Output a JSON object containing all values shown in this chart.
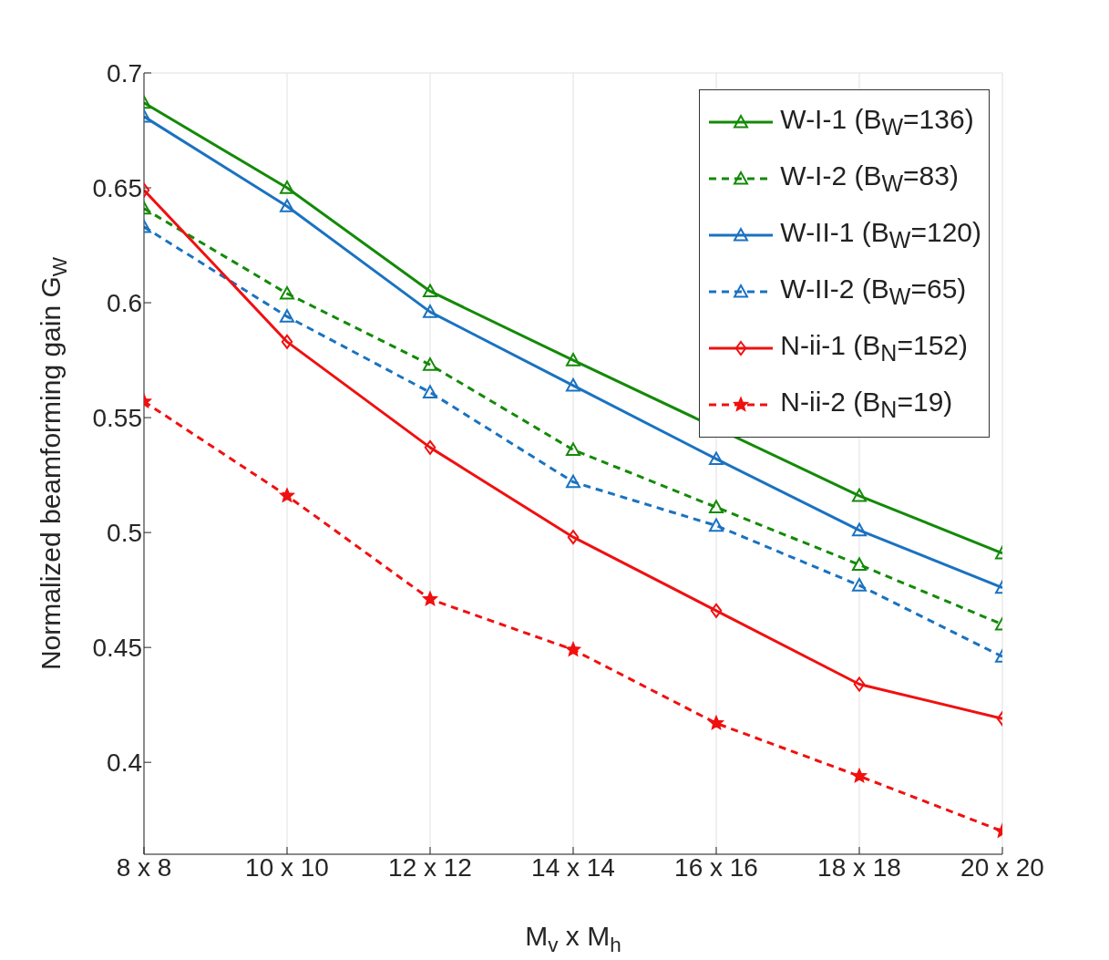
{
  "chart_data": {
    "type": "line",
    "xlabel": "M$_{v}$ x M$_{h}$",
    "ylabel": "Normalized beamforming gain G$_{W}$",
    "categories": [
      "8 x 8",
      "10 x 10",
      "12 x 12",
      "14 x 14",
      "16 x 16",
      "18 x 18",
      "20 x 20"
    ],
    "ylim": [
      0.36,
      0.7
    ],
    "yticks": [
      0.4,
      0.45,
      0.5,
      0.55,
      0.6,
      0.65,
      0.7
    ],
    "grid": true,
    "legend": "top right",
    "series": [
      {
        "name": "W-I-1 (B$_{W}$=136)",
        "color": "#138a07",
        "marker": "triangle",
        "line_style": "solid",
        "values": [
          0.687,
          0.65,
          0.605,
          0.575,
          null,
          0.516,
          0.491
        ]
      },
      {
        "name": "W-I-2 (B$_{W}$=83)",
        "color": "#138a07",
        "marker": "triangle",
        "line_style": "dashed",
        "values": [
          0.641,
          0.604,
          0.573,
          0.536,
          0.511,
          0.486,
          0.46
        ]
      },
      {
        "name": "W-II-1 (B$_{W}$=120)",
        "color": "#1a72c1",
        "marker": "triangle",
        "line_style": "solid",
        "values": [
          0.681,
          0.642,
          0.596,
          0.564,
          0.532,
          0.501,
          0.476
        ]
      },
      {
        "name": "W-II-2 (B$_{W}$=65)",
        "color": "#1a72c1",
        "marker": "triangle",
        "line_style": "dashed",
        "values": [
          0.633,
          0.594,
          0.561,
          0.522,
          0.503,
          0.477,
          0.446
        ]
      },
      {
        "name": "N-ii-1 (B$_{N}$=152)",
        "color": "#f01010",
        "marker": "diamond",
        "line_style": "solid",
        "values": [
          0.649,
          0.583,
          0.537,
          0.498,
          0.466,
          0.434,
          0.419
        ]
      },
      {
        "name": "N-ii-2 (B$_{N}$=19)",
        "color": "#f01010",
        "marker": "star",
        "line_style": "dashed",
        "values": [
          0.557,
          0.516,
          0.471,
          0.449,
          0.417,
          0.394,
          0.37
        ]
      }
    ]
  }
}
